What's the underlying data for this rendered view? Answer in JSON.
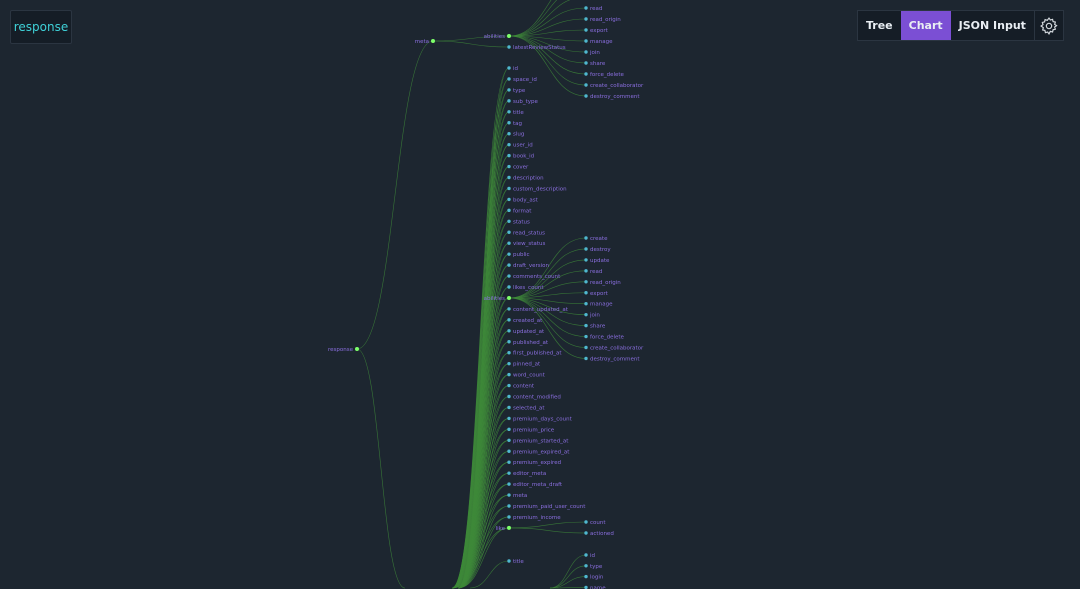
{
  "header": {
    "title": "response"
  },
  "toolbar": {
    "tabs": [
      {
        "label": "Tree",
        "active": false
      },
      {
        "label": "Chart",
        "active": true
      },
      {
        "label": "JSON Input",
        "active": false
      }
    ],
    "settings_icon": "gear-icon"
  },
  "colors": {
    "background": "#1d2630",
    "leaf_dot": "#4fb8cf",
    "parent_dot": "#7dff6b",
    "link": "#3f8a3a",
    "label": "#8b6fe0",
    "accent": "#7b4fd4"
  },
  "tree": {
    "root": "response",
    "meta": {
      "label": "meta",
      "children": [
        "abilities",
        "latestReviewStatus"
      ],
      "abilities_children": [
        "create",
        "destroy",
        "update",
        "read",
        "read_origin",
        "export",
        "manage",
        "join",
        "share",
        "force_delete",
        "create_collaborator",
        "destroy_comment"
      ]
    },
    "doc_fields": [
      "id",
      "space_id",
      "type",
      "sub_type",
      "title",
      "tag",
      "slug",
      "user_id",
      "book_id",
      "cover",
      "description",
      "custom_description",
      "body_ast",
      "format",
      "status",
      "read_status",
      "view_status",
      "public",
      "draft_version",
      "comments_count",
      "likes_count",
      "abilities",
      "content_updated_at",
      "created_at",
      "updated_at",
      "published_at",
      "first_published_at",
      "pinned_at",
      "word_count",
      "content",
      "content_modified",
      "selected_at",
      "premium_days_count",
      "premium_price",
      "premium_started_at",
      "premium_expired_at",
      "premium_expired",
      "editor_meta",
      "editor_meta_draft",
      "meta",
      "premium_paid_user_count",
      "premium_income",
      "like"
    ],
    "doc_abilities_children": [
      "create",
      "destroy",
      "update",
      "read",
      "read_origin",
      "export",
      "manage",
      "join",
      "share",
      "force_delete",
      "create_collaborator",
      "destroy_comment"
    ],
    "like_children": [
      "count",
      "actioned"
    ],
    "lower_fields": [
      "title"
    ],
    "user_children": [
      "id",
      "type",
      "login",
      "name"
    ]
  }
}
